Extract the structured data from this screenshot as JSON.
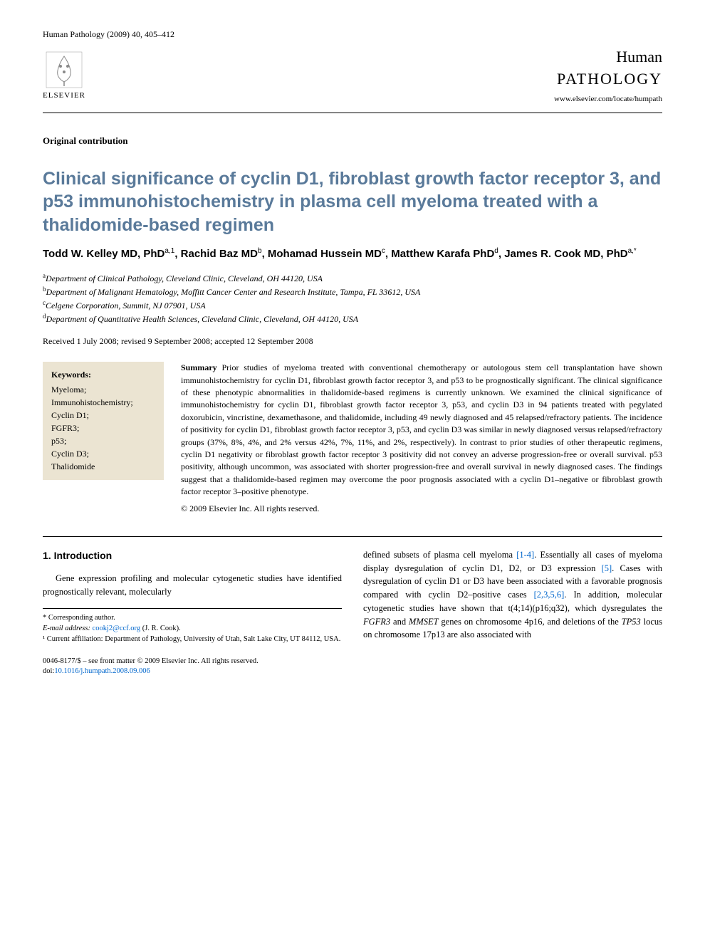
{
  "journal_ref": "Human Pathology (2009) 40, 405–412",
  "publisher_label": "ELSEVIER",
  "journal_name_1": "Human",
  "journal_name_2": "PATHOLOGY",
  "journal_url": "www.elsevier.com/locate/humpath",
  "article_type": "Original contribution",
  "title": "Clinical significance of cyclin D1, fibroblast growth factor receptor 3, and p53 immunohistochemistry in plasma cell myeloma treated with a thalidomide-based regimen",
  "authors_html": "Todd W. Kelley MD, PhD<sup>a,1</sup>, Rachid Baz MD<sup>b</sup>, Mohamad Hussein MD<sup>c</sup>, Matthew Karafa PhD<sup>d</sup>, James R. Cook MD, PhD<sup>a,*</sup>",
  "affiliations": {
    "a": "Department of Clinical Pathology, Cleveland Clinic, Cleveland, OH 44120, USA",
    "b": "Department of Malignant Hematology, Moffitt Cancer Center and Research Institute, Tampa, FL 33612, USA",
    "c": "Celgene Corporation, Summit, NJ 07901, USA",
    "d": "Department of Quantitative Health Sciences, Cleveland Clinic, Cleveland, OH 44120, USA"
  },
  "dates": "Received 1 July 2008; revised 9 September 2008; accepted 12 September 2008",
  "keywords_label": "Keywords:",
  "keywords": [
    "Myeloma;",
    "Immunohistochemistry;",
    "Cyclin D1;",
    "FGFR3;",
    "p53;",
    "Cyclin D3;",
    "Thalidomide"
  ],
  "summary_label": "Summary",
  "summary_text": "Prior studies of myeloma treated with conventional chemotherapy or autologous stem cell transplantation have shown immunohistochemistry for cyclin D1, fibroblast growth factor receptor 3, and p53 to be prognostically significant. The clinical significance of these phenotypic abnormalities in thalidomide-based regimens is currently unknown. We examined the clinical significance of immunohistochemistry for cyclin D1, fibroblast growth factor receptor 3, p53, and cyclin D3 in 94 patients treated with pegylated doxorubicin, vincristine, dexamethasone, and thalidomide, including 49 newly diagnosed and 45 relapsed/refractory patients. The incidence of positivity for cyclin D1, fibroblast growth factor receptor 3, p53, and cyclin D3 was similar in newly diagnosed versus relapsed/refractory groups (37%, 8%, 4%, and 2% versus 42%, 7%, 11%, and 2%, respectively). In contrast to prior studies of other therapeutic regimens, cyclin D1 negativity or fibroblast growth factor receptor 3 positivity did not convey an adverse progression-free or overall survival. p53 positivity, although uncommon, was associated with shorter progression-free and overall survival in newly diagnosed cases. The findings suggest that a thalidomide-based regimen may overcome the poor prognosis associated with a cyclin D1–negative or fibroblast growth factor receptor 3–positive phenotype.",
  "copyright": "© 2009 Elsevier Inc. All rights reserved.",
  "section1_heading": "1. Introduction",
  "intro_para1": "Gene expression profiling and molecular cytogenetic studies have identified prognostically relevant, molecularly",
  "intro_para2_pre": "defined subsets of plasma cell myeloma ",
  "intro_ref1": "[1-4]",
  "intro_para2_mid": ". Essentially all cases of myeloma display dysregulation of cyclin D1, D2, or D3 expression ",
  "intro_ref2": "[5]",
  "intro_para2_mid2": ". Cases with dysregulation of cyclin D1 or D3 have been associated with a favorable prognosis compared with cyclin D2–positive cases ",
  "intro_ref3": "[2,3,5,6]",
  "intro_para2_end": ". In addition, molecular cytogenetic studies have shown that t(4;14)(p16;q32), which dysregulates the ",
  "gene1": "FGFR3",
  "intro_and": " and ",
  "gene2": "MMSET",
  "intro_para2_tail": " genes on chromosome 4p16, and deletions of the ",
  "gene3": "TP53",
  "intro_para2_final": " locus on chromosome 17p13 are also associated with",
  "corr_label": "* Corresponding author.",
  "email_label": "E-mail address:",
  "email": "cookj2@ccf.org",
  "email_suffix": " (J. R. Cook).",
  "footnote1": "¹ Current affiliation: Department of Pathology, University of Utah, Salt Lake City, UT 84112, USA.",
  "issn_line": "0046-8177/$ – see front matter © 2009 Elsevier Inc. All rights reserved.",
  "doi_label": "doi:",
  "doi": "10.1016/j.humpath.2008.09.006",
  "colors": {
    "title": "#5a7a9a",
    "link": "#0066cc",
    "keywords_bg": "#ebe4d2",
    "text": "#000000",
    "background": "#ffffff"
  },
  "typography": {
    "title_fontsize": 25,
    "body_fontsize": 13,
    "summary_fontsize": 12,
    "footnote_fontsize": 10.5
  }
}
